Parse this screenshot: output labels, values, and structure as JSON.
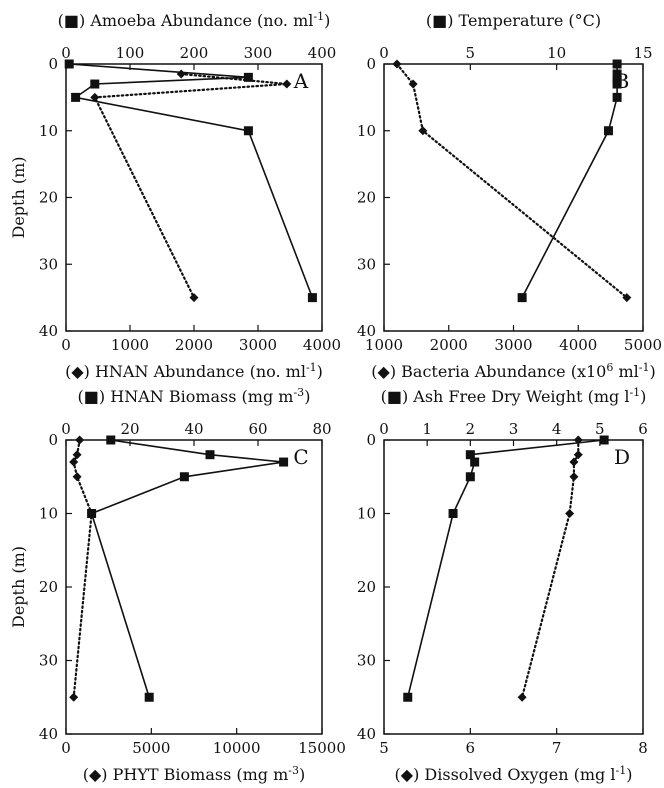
{
  "chart_data": [
    {
      "panel": "A",
      "type": "line",
      "ylabel": "Depth (m)",
      "ylim": [
        40,
        0
      ],
      "yticks": [
        0,
        10,
        20,
        30,
        40
      ],
      "top_axis": {
        "label": "(■) Amoeba Abundance (no. ml",
        "sup": "-1",
        "close": ")",
        "range": [
          0,
          400
        ],
        "ticks": [
          0,
          100,
          200,
          300,
          400
        ]
      },
      "bottom_axis": {
        "label": "(◆) HNAN Abundance (no. ml",
        "sup": "-1",
        "close": ")",
        "range": [
          0,
          4000
        ],
        "ticks": [
          0,
          1000,
          2000,
          3000,
          4000
        ]
      },
      "series": [
        {
          "marker": "square",
          "style": "solid",
          "axis": "top",
          "points": [
            [
              5,
              0
            ],
            [
              285,
              2
            ],
            [
              45,
              3
            ],
            [
              15,
              5
            ],
            [
              285,
              10
            ],
            [
              385,
              35
            ]
          ]
        },
        {
          "marker": "diamond",
          "style": "dotted",
          "axis": "bottom",
          "points": [
            [
              1800,
              1.5
            ],
            [
              3450,
              3
            ],
            [
              450,
              5
            ],
            [
              2000,
              35
            ]
          ]
        }
      ]
    },
    {
      "panel": "B",
      "type": "line",
      "ylabel": "",
      "ylim": [
        40,
        0
      ],
      "yticks": [
        0,
        10,
        20,
        30,
        40
      ],
      "top_axis": {
        "label": "(■) Temperature (°C)",
        "sup": "",
        "close": "",
        "range": [
          0,
          15
        ],
        "ticks": [
          0,
          5,
          10,
          15
        ]
      },
      "bottom_axis": {
        "label": "(◆) Bacteria Abundance (x10",
        "sup": "6",
        "close": " ml",
        "sup2": "-1",
        "close2": ")",
        "range": [
          1000,
          5000
        ],
        "ticks": [
          1000,
          2000,
          3000,
          4000,
          5000
        ]
      },
      "series": [
        {
          "marker": "square",
          "style": "solid",
          "axis": "top",
          "points": [
            [
              13.5,
              0
            ],
            [
              13.5,
              1.5
            ],
            [
              13.5,
              2.5
            ],
            [
              13.5,
              3
            ],
            [
              13.5,
              5
            ],
            [
              13.0,
              10
            ],
            [
              8.0,
              35
            ]
          ]
        },
        {
          "marker": "diamond",
          "style": "dotted",
          "axis": "bottom",
          "points": [
            [
              1200,
              0
            ],
            [
              1450,
              3
            ],
            [
              1600,
              10
            ],
            [
              4750,
              35
            ]
          ]
        }
      ]
    },
    {
      "panel": "C",
      "type": "line",
      "ylabel": "Depth (m)",
      "ylim": [
        40,
        0
      ],
      "yticks": [
        0,
        10,
        20,
        30,
        40
      ],
      "top_axis": {
        "label": "(■) HNAN Biomass (mg m",
        "sup": "-3",
        "close": ")",
        "range": [
          0,
          80
        ],
        "ticks": [
          0,
          20,
          40,
          60,
          80
        ]
      },
      "bottom_axis": {
        "label": "(◆) PHYT Biomass (mg m",
        "sup": "-3",
        "close": ")",
        "range": [
          0,
          15000
        ],
        "ticks": [
          0,
          5000,
          10000,
          15000
        ]
      },
      "series": [
        {
          "marker": "square",
          "style": "solid",
          "axis": "top",
          "points": [
            [
              14,
              0
            ],
            [
              45,
              2
            ],
            [
              68,
              3
            ],
            [
              37,
              5
            ],
            [
              8,
              10
            ],
            [
              26,
              35
            ]
          ]
        },
        {
          "marker": "diamond",
          "style": "dotted",
          "axis": "bottom",
          "points": [
            [
              800,
              0
            ],
            [
              650,
              2
            ],
            [
              450,
              3
            ],
            [
              650,
              5
            ],
            [
              1500,
              10
            ],
            [
              450,
              35
            ]
          ]
        }
      ]
    },
    {
      "panel": "D",
      "type": "line",
      "ylabel": "",
      "ylim": [
        40,
        0
      ],
      "yticks": [
        0,
        10,
        20,
        30,
        40
      ],
      "top_axis": {
        "label": "(■) Ash Free Dry Weight (mg l",
        "sup": "-1",
        "close": ")",
        "range": [
          0,
          6
        ],
        "ticks": [
          0,
          1,
          2,
          3,
          4,
          5,
          6
        ]
      },
      "bottom_axis": {
        "label": "(◆) Dissolved Oxygen (mg l",
        "sup": "-1",
        "close": ")",
        "range": [
          5,
          8
        ],
        "ticks": [
          5,
          6,
          7,
          8
        ]
      },
      "series": [
        {
          "marker": "square",
          "style": "solid",
          "axis": "top",
          "points": [
            [
              5.1,
              0
            ],
            [
              2.0,
              2
            ],
            [
              2.1,
              3
            ],
            [
              2.0,
              5
            ],
            [
              1.6,
              10
            ],
            [
              0.55,
              35
            ]
          ]
        },
        {
          "marker": "diamond",
          "style": "dotted",
          "axis": "bottom",
          "points": [
            [
              7.25,
              0
            ],
            [
              7.25,
              2
            ],
            [
              7.2,
              3
            ],
            [
              7.2,
              5
            ],
            [
              7.15,
              10
            ],
            [
              6.6,
              35
            ]
          ]
        }
      ]
    }
  ],
  "colors": {
    "ink": "#111111",
    "background": "#ffffff"
  }
}
